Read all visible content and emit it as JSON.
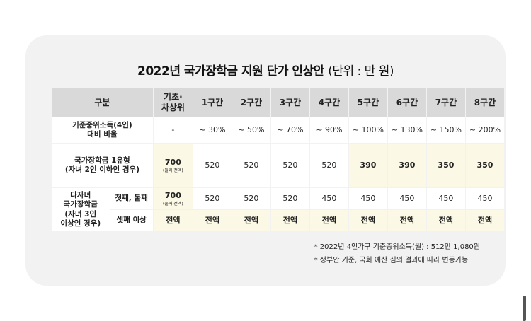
{
  "title": "2022년 국가장학금 지원 단가 인상안",
  "title_unit": "(단위 : 만 원)",
  "table": {
    "header": {
      "category": "구분",
      "basic": "기초·\n차상위",
      "brackets": [
        "1구간",
        "2구간",
        "3구간",
        "4구간",
        "5구간",
        "6구간",
        "7구간",
        "8구간"
      ]
    },
    "income_row": {
      "label": "기준중위소득(4인)\n대비 비율",
      "basic": "-",
      "values": [
        "~ 30%",
        "~ 50%",
        "~ 70%",
        "~ 90%",
        "~ 100%",
        "~ 130%",
        "~ 150%",
        "~ 200%"
      ]
    },
    "type1_row": {
      "label": "국가장학금 1유형\n(자녀 2인 이하인 경우)",
      "basic": "700",
      "basic_note": "(둘째 전액)",
      "values": [
        "520",
        "520",
        "520",
        "520",
        "390",
        "390",
        "350",
        "350"
      ]
    },
    "multi": {
      "label": "다자녀\n국가장학금\n(자녀 3인\n이상인 경우)",
      "row1": {
        "label": "첫째, 둘째",
        "basic": "700",
        "basic_note": "(둘째 전액)",
        "values": [
          "520",
          "520",
          "520",
          "450",
          "450",
          "450",
          "450",
          "450"
        ]
      },
      "row2": {
        "label": "셋째 이상",
        "basic": "전액",
        "values": [
          "전액",
          "전액",
          "전액",
          "전액",
          "전액",
          "전액",
          "전액",
          "전액"
        ]
      }
    }
  },
  "notes": [
    "* 2022년 4인가구 기준중위소득(월) : 512만 1,080원",
    "* 정부안 기준, 국회 예산 심의 결과에 따라 변동가능"
  ],
  "colors": {
    "card_bg": "#f2f2f2",
    "header_bg": "#d9d9d9",
    "highlight_bg": "#fbf8e5"
  }
}
